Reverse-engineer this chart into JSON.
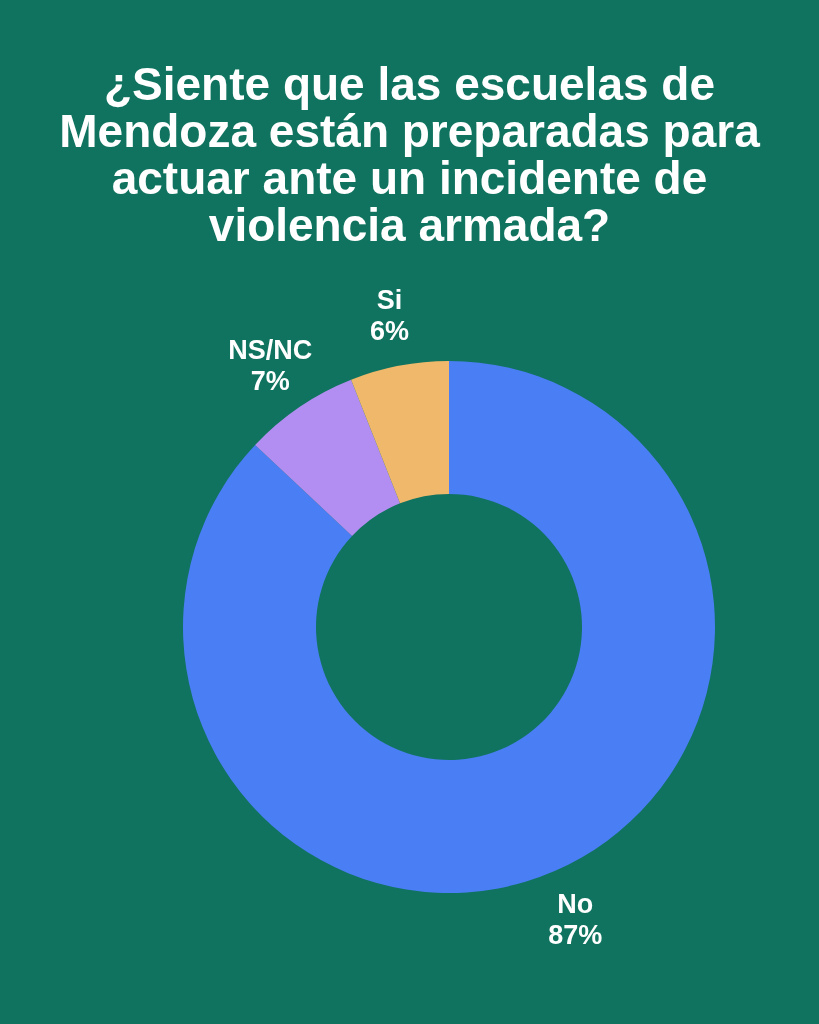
{
  "chart_data": {
    "type": "donut",
    "title": "¿Siente que las escuelas de Mendoza están preparadas para actuar ante un incidente de violencia armada?",
    "categories": [
      "No",
      "NS/NC",
      "Si"
    ],
    "values": [
      87,
      7,
      6
    ],
    "colors": [
      "#4a7ef5",
      "#b38ef2",
      "#f0b86a"
    ],
    "value_labels": [
      "87%",
      "7%",
      "6%"
    ]
  }
}
